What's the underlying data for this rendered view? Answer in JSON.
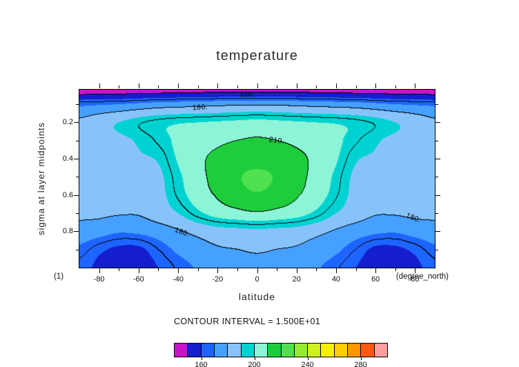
{
  "title": "temperature",
  "axes": {
    "x": {
      "label": "latitude",
      "units": "(degree_north)",
      "left_note": "(1)",
      "min": -90,
      "max": 90,
      "major_ticks": [
        -80,
        -60,
        -40,
        -20,
        0,
        20,
        40,
        60,
        80
      ],
      "minor_ticks": [
        -70,
        -50,
        -30,
        -10,
        10,
        30,
        50,
        70
      ]
    },
    "y": {
      "label": "sigma at layer midpoints",
      "min": 0.02,
      "max": 1.0,
      "major_ticks": [
        0.2,
        0.4,
        0.6,
        0.8
      ],
      "minor_ticks": [
        0.1,
        0.3,
        0.5,
        0.7,
        0.9
      ]
    }
  },
  "contour_note": "CONTOUR INTERVAL = 1.500E+01",
  "colorbar": {
    "min": 140,
    "max": 300,
    "step": 10,
    "colors": [
      "#c814c8",
      "#141ecd",
      "#1e64ff",
      "#46a0ff",
      "#87c3fa",
      "#00d2d2",
      "#8cf5d7",
      "#1ecd3c",
      "#50e150",
      "#96eb32",
      "#cdf01e",
      "#f5f000",
      "#ffcd00",
      "#ff9600",
      "#ff5a14",
      "#ff9c9c"
    ],
    "labels": [
      160,
      200,
      240,
      280
    ]
  },
  "contour_labels": [
    {
      "text": "150.",
      "lat": -5,
      "sigma": 0.048,
      "rot": 0
    },
    {
      "text": "180.",
      "lat": -29,
      "sigma": 0.118,
      "rot": -3
    },
    {
      "text": "210.",
      "lat": 10,
      "sigma": 0.3,
      "rot": 8
    },
    {
      "text": "180.",
      "lat": -38,
      "sigma": 0.805,
      "rot": 20
    },
    {
      "text": "180.",
      "lat": 79,
      "sigma": 0.727,
      "rot": 22
    }
  ],
  "chart_data": {
    "type": "filled_contour",
    "title": "temperature",
    "xlabel": "latitude",
    "x_units": "degree_north",
    "ylabel": "sigma at layer midpoints",
    "contour_interval": 15,
    "line_levels": [
      150,
      165,
      180,
      195,
      210,
      225
    ],
    "labeled_levels": [
      150,
      180,
      210
    ],
    "fill_min": 140,
    "fill_step": 10,
    "lat": [
      -90,
      -80,
      -70,
      -60,
      -50,
      -40,
      -30,
      -20,
      -10,
      0,
      10,
      20,
      30,
      40,
      50,
      60,
      70,
      80,
      90
    ],
    "sigma": [
      0.02,
      0.1,
      0.2,
      0.3,
      0.4,
      0.5,
      0.6,
      0.7,
      0.8,
      0.9,
      1.0
    ],
    "temperature": [
      [
        142,
        143,
        143,
        144,
        144,
        145,
        145,
        146,
        146,
        146,
        146,
        146,
        145,
        145,
        144,
        144,
        143,
        143,
        142
      ],
      [
        168,
        169,
        170,
        172,
        174,
        175,
        176,
        177,
        178,
        178,
        178,
        177,
        176,
        175,
        174,
        172,
        170,
        169,
        168
      ],
      [
        182,
        186,
        190,
        194,
        197,
        199,
        200,
        201,
        202,
        203,
        202,
        201,
        200,
        199,
        197,
        194,
        190,
        186,
        182
      ],
      [
        184,
        186,
        188,
        191,
        196,
        202,
        206,
        208,
        210,
        211,
        210,
        208,
        206,
        202,
        196,
        191,
        188,
        186,
        184
      ],
      [
        184,
        185,
        187,
        189,
        191,
        201,
        208,
        212,
        215,
        216,
        215,
        212,
        208,
        201,
        191,
        189,
        187,
        185,
        184
      ],
      [
        184,
        185,
        186,
        188,
        188,
        198,
        207,
        213,
        219,
        222,
        219,
        213,
        207,
        198,
        188,
        188,
        186,
        185,
        184
      ],
      [
        183,
        184,
        185,
        186,
        187,
        196,
        205,
        211,
        216,
        219,
        216,
        211,
        205,
        196,
        187,
        186,
        185,
        184,
        183
      ],
      [
        182,
        182,
        181,
        181,
        185,
        190,
        198,
        204,
        207,
        209,
        207,
        204,
        198,
        190,
        185,
        181,
        181,
        182,
        182
      ],
      [
        176,
        174,
        171,
        172,
        175,
        179,
        183,
        186,
        187,
        188,
        187,
        186,
        183,
        179,
        175,
        172,
        171,
        174,
        176
      ],
      [
        168,
        162,
        158,
        158,
        165,
        172,
        176,
        179,
        180,
        181,
        180,
        179,
        176,
        172,
        165,
        158,
        158,
        162,
        168
      ],
      [
        163,
        158,
        155,
        156,
        160,
        166,
        171,
        175,
        177,
        178,
        177,
        175,
        171,
        166,
        160,
        156,
        155,
        158,
        163
      ]
    ]
  }
}
